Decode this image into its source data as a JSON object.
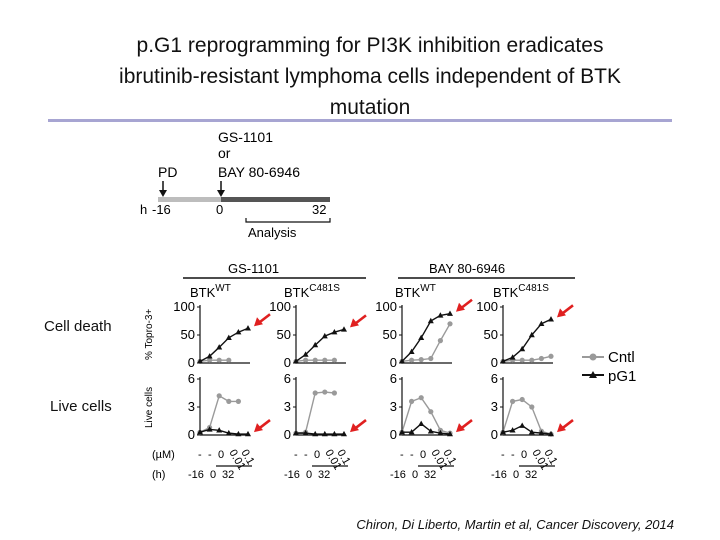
{
  "slide": {
    "title_lines": [
      "p.G1 reprogramming for PI3K inhibition eradicates",
      "ibrutinib-resistant lymphoma cells independent of BTK",
      "mutation"
    ],
    "citation": "Chiron, Di Liberto, Martin et al, Cancer Discovery, 2014"
  },
  "schema": {
    "drug_a": "GS-1101",
    "or_text": "or",
    "drug_b": "BAY 80-6946",
    "pd_label": "PD",
    "time_prefix": "h",
    "ticks": [
      "-16",
      "0",
      "32"
    ],
    "analysis_label": "Analysis"
  },
  "figure": {
    "row_labels": [
      "Cell death",
      "Live cells"
    ],
    "drug_headers": [
      "GS-1101",
      "BAY 80-6946"
    ],
    "btk_base": "BTK",
    "genotypes": [
      "WT",
      "C481S",
      "WT",
      "C481S"
    ],
    "y_axis_cell_death": "% Topro-3+",
    "y_axis_live": "Live cells",
    "cell_death_ticks": [
      "100",
      "50",
      "0"
    ],
    "live_ticks": [
      "6",
      "3",
      "0"
    ],
    "um_label": "(µM)",
    "h_label": "(h)",
    "dose_row_labels": [
      "-",
      "-",
      "0",
      "0.01",
      "0.1"
    ],
    "time_row_labels": [
      "-16",
      "0",
      "32"
    ],
    "legend": [
      {
        "label": "Cntl",
        "color": "#9a9a9a",
        "marker": "circle"
      },
      {
        "label": "pG1",
        "color": "#111111",
        "marker": "triangle"
      }
    ],
    "arrow_color": "#e02020"
  },
  "chart_data": [
    {
      "type": "line",
      "title": "GS-1101 BTK WT",
      "ylabel": "% Topro-3+",
      "ylim": [
        0,
        100
      ],
      "x": [
        1,
        2,
        3,
        4,
        5,
        6
      ],
      "series": [
        {
          "name": "Cntl",
          "values": [
            3,
            5,
            5,
            5,
            null,
            null
          ]
        },
        {
          "name": "pG1",
          "values": [
            3,
            12,
            28,
            45,
            55,
            62
          ]
        }
      ]
    },
    {
      "type": "line",
      "title": "GS-1101 BTK C481S",
      "ylabel": "",
      "ylim": [
        0,
        100
      ],
      "x": [
        1,
        2,
        3,
        4,
        5,
        6
      ],
      "series": [
        {
          "name": "Cntl",
          "values": [
            3,
            5,
            5,
            5,
            5,
            null
          ]
        },
        {
          "name": "pG1",
          "values": [
            3,
            15,
            32,
            48,
            55,
            60
          ]
        }
      ]
    },
    {
      "type": "line",
      "title": "BAY 80-6946 BTK WT",
      "ylabel": "",
      "ylim": [
        0,
        100
      ],
      "x": [
        1,
        2,
        3,
        4,
        5,
        6
      ],
      "series": [
        {
          "name": "Cntl",
          "values": [
            3,
            5,
            6,
            8,
            40,
            70
          ]
        },
        {
          "name": "pG1",
          "values": [
            3,
            20,
            45,
            75,
            85,
            88
          ]
        }
      ]
    },
    {
      "type": "line",
      "title": "BAY 80-6946 BTK C481S",
      "ylabel": "",
      "ylim": [
        0,
        100
      ],
      "x": [
        1,
        2,
        3,
        4,
        5,
        6
      ],
      "series": [
        {
          "name": "Cntl",
          "values": [
            3,
            5,
            5,
            5,
            8,
            12
          ]
        },
        {
          "name": "pG1",
          "values": [
            3,
            10,
            25,
            50,
            70,
            78
          ]
        }
      ]
    },
    {
      "type": "line",
      "title": "GS-1101 BTK WT",
      "ylabel": "Live cells",
      "ylim": [
        0,
        6
      ],
      "x": [
        1,
        2,
        3,
        4,
        5,
        6
      ],
      "series": [
        {
          "name": "Cntl",
          "values": [
            0.3,
            0.8,
            4.2,
            3.6,
            3.6,
            null
          ]
        },
        {
          "name": "pG1",
          "values": [
            0.3,
            0.6,
            0.5,
            0.2,
            0.1,
            0.1
          ]
        }
      ]
    },
    {
      "type": "line",
      "title": "GS-1101 BTK C481S",
      "ylabel": "",
      "ylim": [
        0,
        6
      ],
      "x": [
        1,
        2,
        3,
        4,
        5,
        6
      ],
      "series": [
        {
          "name": "Cntl",
          "values": [
            0.2,
            0.3,
            4.5,
            4.6,
            4.5,
            null
          ]
        },
        {
          "name": "pG1",
          "values": [
            0.2,
            0.2,
            0.1,
            0.1,
            0.1,
            0.1
          ]
        }
      ]
    },
    {
      "type": "line",
      "title": "BAY 80-6946 BTK WT",
      "ylabel": "",
      "ylim": [
        0,
        6
      ],
      "x": [
        1,
        2,
        3,
        4,
        5,
        6
      ],
      "series": [
        {
          "name": "Cntl",
          "values": [
            0.3,
            3.6,
            4.0,
            2.5,
            0.5,
            0.2
          ]
        },
        {
          "name": "pG1",
          "values": [
            0.3,
            0.3,
            1.2,
            0.4,
            0.2,
            0.1
          ]
        }
      ]
    },
    {
      "type": "line",
      "title": "BAY 80-6946 BTK C481S",
      "ylabel": "",
      "ylim": [
        0,
        6
      ],
      "x": [
        1,
        2,
        3,
        4,
        5,
        6
      ],
      "series": [
        {
          "name": "Cntl",
          "values": [
            0.3,
            3.6,
            3.8,
            3.0,
            0.4,
            0.1
          ]
        },
        {
          "name": "pG1",
          "values": [
            0.3,
            0.5,
            1.0,
            0.3,
            0.2,
            0.1
          ]
        }
      ]
    }
  ]
}
